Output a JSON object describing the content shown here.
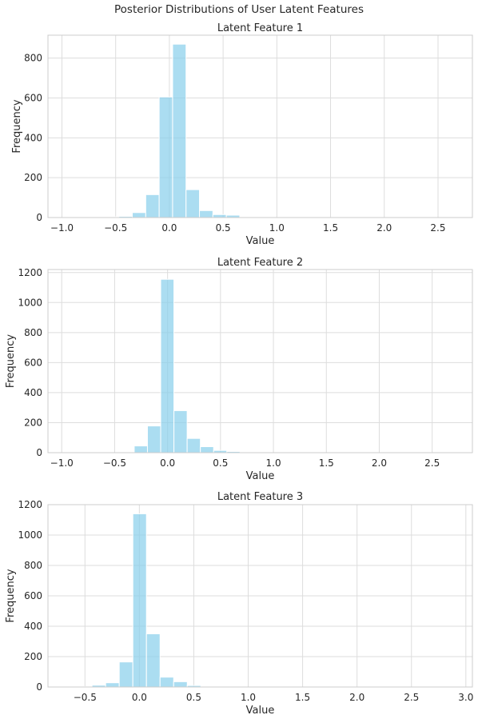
{
  "figure": {
    "suptitle": "Posterior Distributions of User Latent Features"
  },
  "colors": {
    "bar": "#87CEEB",
    "grid": "#dddddd",
    "spine": "#cccccc",
    "text": "#262626"
  },
  "chart_data": [
    {
      "type": "bar",
      "title": "Latent Feature 1",
      "xlabel": "Value",
      "ylabel": "Frequency",
      "xlim": [
        -1.13,
        2.82
      ],
      "ylim": [
        0,
        915
      ],
      "xticks": [
        -1.0,
        -0.5,
        0.0,
        0.5,
        1.0,
        1.5,
        2.0,
        2.5
      ],
      "xtick_labels": [
        "−1.0",
        "−0.5",
        "0.0",
        "0.5",
        "1.0",
        "1.5",
        "2.0",
        "2.5"
      ],
      "yticks": [
        0,
        200,
        400,
        600,
        800
      ],
      "yticks_labels": [
        "0",
        "200",
        "400",
        "600",
        "800"
      ],
      "grid": true,
      "bin_edges": [
        -0.97,
        -0.845,
        -0.72,
        -0.595,
        -0.47,
        -0.345,
        -0.22,
        -0.095,
        0.03,
        0.155,
        0.28,
        0.405,
        0.53,
        0.655,
        0.78
      ],
      "values": [
        1,
        1,
        2,
        4,
        6,
        25,
        115,
        605,
        870,
        140,
        35,
        15,
        12,
        4
      ]
    },
    {
      "type": "bar",
      "title": "Latent Feature 2",
      "xlabel": "Value",
      "ylabel": "Frequency",
      "xlim": [
        -1.13,
        2.88
      ],
      "ylim": [
        0,
        1220
      ],
      "xticks": [
        -1.0,
        -0.5,
        0.0,
        0.5,
        1.0,
        1.5,
        2.0,
        2.5
      ],
      "xtick_labels": [
        "−1.0",
        "−0.5",
        "0.0",
        "0.5",
        "1.0",
        "1.5",
        "2.0",
        "2.5"
      ],
      "yticks": [
        0,
        200,
        400,
        600,
        800,
        1000,
        1200
      ],
      "yticks_labels": [
        "0",
        "200",
        "400",
        "600",
        "800",
        "1000",
        "1200"
      ],
      "grid": true,
      "bin_edges": [
        -0.44,
        -0.315,
        -0.19,
        -0.065,
        0.06,
        0.185,
        0.31,
        0.435,
        0.56,
        0.685,
        0.81,
        0.935
      ],
      "values": [
        4,
        45,
        178,
        1155,
        280,
        95,
        40,
        15,
        8,
        5,
        2
      ]
    },
    {
      "type": "bar",
      "title": "Latent Feature 3",
      "xlabel": "Value",
      "ylabel": "Frequency",
      "xlim": [
        -0.84,
        3.06
      ],
      "ylim": [
        0,
        1200
      ],
      "xticks": [
        -0.5,
        0.0,
        0.5,
        1.0,
        1.5,
        2.0,
        2.5,
        3.0
      ],
      "xtick_labels": [
        "−0.5",
        "0.0",
        "0.5",
        "1.0",
        "1.5",
        "2.0",
        "2.5",
        "3.0"
      ],
      "yticks": [
        0,
        200,
        400,
        600,
        800,
        1000,
        1200
      ],
      "yticks_labels": [
        "0",
        "200",
        "400",
        "600",
        "800",
        "1000",
        "1200"
      ],
      "grid": true,
      "bin_edges": [
        -0.56,
        -0.435,
        -0.31,
        -0.185,
        -0.06,
        0.065,
        0.19,
        0.315,
        0.44,
        0.565,
        0.69
      ],
      "values": [
        3,
        12,
        28,
        165,
        1140,
        350,
        65,
        35,
        10,
        3
      ]
    }
  ]
}
